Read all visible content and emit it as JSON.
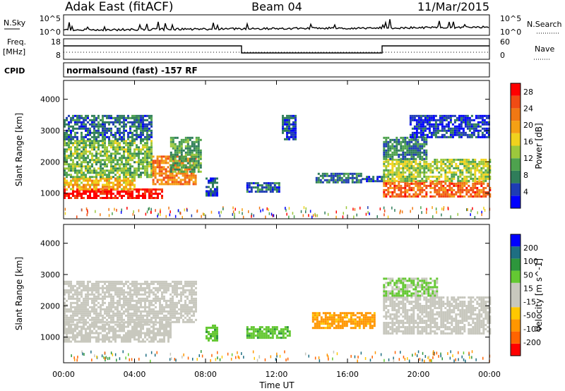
{
  "header": {
    "station": "Adak East (fitACF)",
    "beam": "Beam 04",
    "date": "11/Mar/2015"
  },
  "strip_nsky": {
    "left_label": "N.Sky",
    "right_label": "N.Search",
    "left_ticks": [
      "10^5",
      "10^0"
    ],
    "right_ticks": [
      "10^5",
      "10^0"
    ]
  },
  "strip_freq": {
    "left_label_1": "Freq.",
    "left_label_2": "[MHz]",
    "right_label": "Nave",
    "left_ticks": [
      "18",
      "8"
    ],
    "right_ticks": [
      "60",
      "0"
    ]
  },
  "cpid": {
    "label": "CPID",
    "value": "normalsound (fast) -157 RF"
  },
  "colors": {
    "power_scale": [
      "#0000ff",
      "#1e3cb4",
      "#2f7d5a",
      "#4ea24e",
      "#9cc83c",
      "#f0d21e",
      "#f5a014",
      "#f07814",
      "#f04b14",
      "#ff0000"
    ],
    "velocity_scale": [
      "#ff0000",
      "#ff6400",
      "#ff9600",
      "#ffc800",
      "#c8c8be",
      "#c8c8be",
      "#64c832",
      "#2d963c",
      "#1e6e82",
      "#0000ff"
    ]
  },
  "chart_data": [
    {
      "type": "heatmap",
      "title": "Power",
      "xlabel": "Time UT",
      "ylabel": "Slant Range [km]",
      "x_ticks": [
        "00:00",
        "04:00",
        "08:00",
        "12:00",
        "16:00",
        "20:00",
        "00:00"
      ],
      "y_ticks": [
        1000,
        2000,
        3000,
        4000
      ],
      "xlim_hours": [
        0,
        24
      ],
      "ylim_km": [
        180,
        4600
      ],
      "colorbar": {
        "label": "Power [dB]",
        "ticks": [
          4,
          8,
          12,
          16,
          20,
          24,
          28
        ],
        "range": [
          0,
          30
        ]
      },
      "echo_regions": [
        {
          "t0": 0.0,
          "t1": 5.5,
          "r0": 850,
          "r1": 1150,
          "value": 29
        },
        {
          "t0": 0.0,
          "t1": 4.0,
          "r0": 1150,
          "r1": 1500,
          "value": 18
        },
        {
          "t0": 0.0,
          "t1": 5.0,
          "r0": 1500,
          "r1": 2700,
          "value": 12
        },
        {
          "t0": 0.0,
          "t1": 5.0,
          "r0": 2700,
          "r1": 3500,
          "value": 6
        },
        {
          "t0": 5.0,
          "t1": 7.5,
          "r0": 1300,
          "r1": 2200,
          "value": 22
        },
        {
          "t0": 6.0,
          "t1": 7.7,
          "r0": 1700,
          "r1": 2800,
          "value": 10
        },
        {
          "t0": 8.0,
          "t1": 8.6,
          "r0": 900,
          "r1": 1500,
          "value": 5
        },
        {
          "t0": 10.3,
          "t1": 12.2,
          "r0": 1050,
          "r1": 1350,
          "value": 6
        },
        {
          "t0": 12.3,
          "t1": 13.1,
          "r0": 2700,
          "r1": 3500,
          "value": 5
        },
        {
          "t0": 14.2,
          "t1": 16.8,
          "r0": 1350,
          "r1": 1650,
          "value": 7
        },
        {
          "t0": 16.8,
          "t1": 18.4,
          "r0": 1400,
          "r1": 1550,
          "value": 5
        },
        {
          "t0": 18.0,
          "t1": 24.0,
          "r0": 900,
          "r1": 1400,
          "value": 24
        },
        {
          "t0": 18.0,
          "t1": 24.0,
          "r0": 1400,
          "r1": 2100,
          "value": 14
        },
        {
          "t0": 18.0,
          "t1": 20.5,
          "r0": 2100,
          "r1": 2800,
          "value": 8
        },
        {
          "t0": 19.5,
          "t1": 24.0,
          "r0": 2800,
          "r1": 3500,
          "value": 4
        }
      ]
    },
    {
      "type": "heatmap",
      "title": "Velocity",
      "xlabel": "Time UT",
      "ylabel": "Slant Range [km]",
      "x_ticks": [
        "00:00",
        "04:00",
        "08:00",
        "12:00",
        "16:00",
        "20:00",
        "00:00"
      ],
      "y_ticks": [
        1000,
        2000,
        3000,
        4000
      ],
      "xlim_hours": [
        0,
        24
      ],
      "ylim_km": [
        180,
        4600
      ],
      "colorbar": {
        "label": "Velocity [m s^-1]",
        "ticks": [
          "200",
          "100",
          "50",
          "15",
          "-15",
          "-50",
          "-100",
          "-200"
        ]
      },
      "echo_regions": [
        {
          "t0": 0.0,
          "t1": 6.0,
          "r0": 850,
          "r1": 1500,
          "value": 0
        },
        {
          "t0": 0.0,
          "t1": 7.5,
          "r0": 1500,
          "r1": 2800,
          "value": 0
        },
        {
          "t0": 8.0,
          "t1": 8.6,
          "r0": 900,
          "r1": 1400,
          "value": 40
        },
        {
          "t0": 10.3,
          "t1": 12.8,
          "r0": 1000,
          "r1": 1350,
          "value": 40
        },
        {
          "t0": 14.0,
          "t1": 17.5,
          "r0": 1300,
          "r1": 1800,
          "value": -60
        },
        {
          "t0": 18.0,
          "t1": 24.0,
          "r0": 1100,
          "r1": 2300,
          "value": 0
        },
        {
          "t0": 18.0,
          "t1": 21.0,
          "r0": 2300,
          "r1": 2900,
          "value": 20
        }
      ]
    }
  ]
}
